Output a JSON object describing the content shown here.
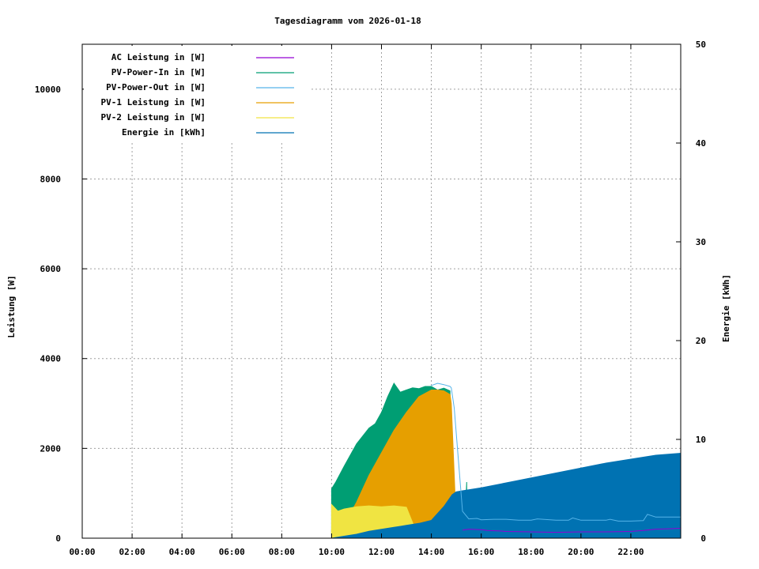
{
  "chart_data": {
    "type": "area",
    "title": "Tagesdiagramm vom 2026-01-18",
    "ylabel": "Leistung [W]",
    "y2label": "Energie [kWh]",
    "xlim": [
      "00:00",
      "24:00"
    ],
    "ylim": [
      0,
      11000
    ],
    "y2lim": [
      0,
      50
    ],
    "x_tick_labels": [
      "00:00",
      "02:00",
      "04:00",
      "06:00",
      "08:00",
      "10:00",
      "12:00",
      "14:00",
      "16:00",
      "18:00",
      "20:00",
      "22:00"
    ],
    "y_tick_labels": [
      "0",
      "2000",
      "4000",
      "6000",
      "8000",
      "10000"
    ],
    "y2_tick_labels": [
      "0",
      "10",
      "20",
      "30",
      "40",
      "50"
    ],
    "grid": true,
    "legend_position": "top-left",
    "series": [
      {
        "name": "AC Leistung in [W]",
        "color": "#9400d3",
        "axis": "left",
        "render": "line",
        "x": [
          "15:15",
          "15:30",
          "16:00",
          "16:15",
          "16:45",
          "17:00",
          "18:00",
          "19:00",
          "20:00",
          "21:00",
          "22:00",
          "22:30",
          "23:00",
          "23:30",
          "24:00"
        ],
        "y": [
          180,
          200,
          190,
          170,
          160,
          150,
          140,
          130,
          140,
          140,
          150,
          170,
          200,
          210,
          220
        ]
      },
      {
        "name": "PV-Power-In in [W]",
        "color": "#009e73",
        "axis": "left",
        "render": "filled",
        "x": [
          "10:00",
          "10:10",
          "10:30",
          "11:00",
          "11:30",
          "11:45",
          "12:00",
          "12:15",
          "12:30",
          "12:45",
          "13:00",
          "13:15",
          "13:30",
          "13:45",
          "14:00",
          "14:15",
          "14:30",
          "14:45",
          "14:48",
          "14:50",
          "15:00",
          "15:05",
          "15:10",
          "15:15",
          "15:20",
          "15:25"
        ],
        "y": [
          1100,
          1250,
          1600,
          2100,
          2450,
          2550,
          2800,
          3150,
          3450,
          3250,
          3300,
          3350,
          3330,
          3380,
          3380,
          3300,
          3340,
          3280,
          1000,
          380,
          280,
          250,
          220,
          200,
          190,
          1250
        ]
      },
      {
        "name": "PV-Power-Out in [W]",
        "color": "#56b4e9",
        "axis": "left",
        "render": "line",
        "x": [
          "14:00",
          "14:15",
          "14:30",
          "14:45",
          "14:48",
          "14:55",
          "15:15",
          "15:30",
          "15:50",
          "16:00",
          "16:30",
          "17:00",
          "17:30",
          "18:00",
          "18:15",
          "19:00",
          "19:30",
          "19:40",
          "20:00",
          "21:00",
          "21:10",
          "21:30",
          "22:00",
          "22:30",
          "22:40",
          "23:00",
          "24:00"
        ],
        "y": [
          3400,
          3450,
          3420,
          3380,
          3350,
          2900,
          600,
          430,
          440,
          410,
          420,
          420,
          400,
          400,
          430,
          400,
          400,
          450,
          400,
          400,
          420,
          380,
          380,
          390,
          530,
          470,
          470
        ]
      },
      {
        "name": "PV-1 Leistung in [W]",
        "color": "#e69f00",
        "axis": "left",
        "render": "filled",
        "x": [
          "10:00",
          "10:30",
          "11:00",
          "11:30",
          "12:00",
          "12:30",
          "13:00",
          "13:30",
          "14:00",
          "14:15",
          "14:30",
          "14:45",
          "14:48",
          "15:00",
          "15:30",
          "16:00",
          "16:30",
          "17:00"
        ],
        "y": [
          200,
          300,
          800,
          1400,
          1900,
          2400,
          2800,
          3150,
          3300,
          3300,
          3280,
          3200,
          3000,
          300,
          270,
          250,
          150,
          30
        ]
      },
      {
        "name": "PV-2 Leistung in [W]",
        "color": "#f0e442",
        "axis": "left",
        "render": "filled",
        "x": [
          "10:00",
          "10:15",
          "10:30",
          "11:00",
          "11:30",
          "12:00",
          "12:30",
          "13:00",
          "13:30",
          "13:45",
          "14:00",
          "14:30",
          "14:45",
          "15:00",
          "15:30",
          "16:00",
          "16:30",
          "17:00"
        ],
        "y": [
          750,
          600,
          650,
          700,
          720,
          700,
          720,
          690,
          0,
          0,
          0,
          0,
          0,
          0,
          30,
          50,
          40,
          10
        ]
      },
      {
        "name": "Energie in [kWh]",
        "color": "#0072b2",
        "axis": "right",
        "render": "filled",
        "x": [
          "10:00",
          "10:30",
          "11:00",
          "11:30",
          "12:00",
          "12:30",
          "13:00",
          "13:30",
          "14:00",
          "14:30",
          "14:50",
          "15:00",
          "15:15",
          "15:30",
          "16:00",
          "17:00",
          "18:00",
          "19:00",
          "20:00",
          "21:00",
          "22:00",
          "23:00",
          "24:00"
        ],
        "y": [
          0,
          0.2,
          0.4,
          0.7,
          0.9,
          1.1,
          1.3,
          1.5,
          1.8,
          3.2,
          4.4,
          4.7,
          4.8,
          4.9,
          5.1,
          5.6,
          6.1,
          6.6,
          7.1,
          7.6,
          8.0,
          8.4,
          8.6
        ]
      }
    ]
  }
}
